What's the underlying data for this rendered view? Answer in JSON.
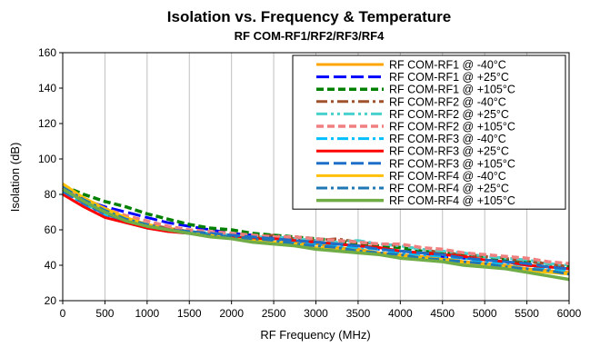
{
  "chart_data": {
    "type": "line",
    "title": "Isolation vs. Frequency & Temperature",
    "subtitle": "RF COM-RF1/RF2/RF3/RF4",
    "xlabel": "RF Frequency (MHz)",
    "ylabel": "Isolation (dB)",
    "xlim": [
      0,
      6000
    ],
    "ylim": [
      20,
      160
    ],
    "xticks": [
      0,
      500,
      1000,
      1500,
      2000,
      2500,
      3000,
      3500,
      4000,
      4500,
      5000,
      5500,
      6000
    ],
    "yticks": [
      20,
      40,
      60,
      80,
      100,
      120,
      140,
      160
    ],
    "grid": "vertical",
    "legend_position": "top-right",
    "x": [
      0,
      250,
      500,
      750,
      1000,
      1250,
      1500,
      1750,
      2000,
      2250,
      2500,
      2750,
      3000,
      3250,
      3500,
      3750,
      4000,
      4250,
      4500,
      4750,
      5000,
      5250,
      5500,
      5750,
      6000
    ],
    "series": [
      {
        "name": "RF COM-RF1 @ -40°C",
        "color": "#FFA500",
        "dash": "solid",
        "width": 3,
        "values": [
          84,
          76,
          70,
          66,
          63,
          61,
          59,
          58,
          57,
          56,
          55,
          53,
          52,
          50,
          49,
          47,
          46,
          45,
          44,
          42,
          41,
          40,
          38,
          37,
          36
        ]
      },
      {
        "name": "RF COM-RF1 @ +25°C",
        "color": "#0000FF",
        "dash": "longdash",
        "width": 3,
        "values": [
          82,
          77,
          73,
          70,
          67,
          64,
          62,
          60,
          58,
          57,
          56,
          55,
          53,
          52,
          51,
          49,
          48,
          47,
          45,
          44,
          43,
          42,
          40,
          39,
          38
        ]
      },
      {
        "name": "RF COM-RF1 @ +105°C",
        "color": "#008000",
        "dash": "dash",
        "width": 3.5,
        "values": [
          85,
          80,
          76,
          73,
          69,
          66,
          63,
          61,
          60,
          58,
          57,
          56,
          55,
          54,
          52,
          51,
          50,
          48,
          47,
          46,
          45,
          43,
          42,
          41,
          39
        ]
      },
      {
        "name": "RF COM-RF2 @ -40°C",
        "color": "#A0522D",
        "dash": "dashdot",
        "width": 3,
        "values": [
          83,
          76,
          70,
          66,
          63,
          61,
          59,
          58,
          57,
          56,
          57,
          55,
          54,
          55,
          53,
          52,
          51,
          49,
          47,
          46,
          45,
          44,
          42,
          41,
          39
        ]
      },
      {
        "name": "RF COM-RF2 @ +25°C",
        "color": "#48D1CC",
        "dash": "dashdotdot",
        "width": 3,
        "values": [
          82,
          75,
          69,
          65,
          62,
          60,
          59,
          58,
          57,
          56,
          56,
          55,
          54,
          53,
          54,
          52,
          51,
          49,
          48,
          47,
          45,
          44,
          43,
          41,
          40
        ]
      },
      {
        "name": "RF COM-RF2 @ +105°C",
        "color": "#F08080",
        "dash": "dash",
        "width": 3.5,
        "values": [
          84,
          78,
          72,
          68,
          65,
          62,
          60,
          59,
          58,
          57,
          56,
          56,
          55,
          54,
          53,
          52,
          52,
          50,
          49,
          47,
          46,
          45,
          44,
          42,
          41
        ]
      },
      {
        "name": "RF COM-RF3 @ -40°C",
        "color": "#00BFFF",
        "dash": "dashdot",
        "width": 3,
        "values": [
          81,
          74,
          68,
          64,
          61,
          59,
          58,
          57,
          56,
          55,
          54,
          53,
          52,
          51,
          50,
          49,
          47,
          46,
          45,
          44,
          42,
          41,
          40,
          38,
          37
        ]
      },
      {
        "name": "RF COM-RF3 @ +25°C",
        "color": "#FF0000",
        "dash": "solid",
        "width": 3,
        "values": [
          80,
          73,
          67,
          64,
          61,
          59,
          58,
          57,
          56,
          55,
          55,
          54,
          53,
          52,
          51,
          50,
          48,
          47,
          46,
          45,
          43,
          42,
          40,
          39,
          38
        ]
      },
      {
        "name": "RF COM-RF3 @ +105°C",
        "color": "#1E6EC8",
        "dash": "longdash",
        "width": 3,
        "values": [
          82,
          75,
          69,
          65,
          62,
          60,
          59,
          58,
          57,
          56,
          55,
          54,
          53,
          52,
          51,
          49,
          48,
          47,
          46,
          44,
          43,
          42,
          41,
          39,
          38
        ]
      },
      {
        "name": "RF COM-RF4 @ -40°C",
        "color": "#FFC000",
        "dash": "solid",
        "width": 3,
        "values": [
          86,
          78,
          72,
          67,
          63,
          60,
          58,
          57,
          55,
          54,
          53,
          52,
          50,
          49,
          48,
          46,
          45,
          44,
          43,
          41,
          40,
          39,
          37,
          36,
          35
        ]
      },
      {
        "name": "RF COM-RF4 @ +25°C",
        "color": "#1F77B4",
        "dash": "dashdot",
        "width": 3,
        "values": [
          84,
          77,
          71,
          66,
          63,
          60,
          59,
          57,
          56,
          55,
          54,
          52,
          51,
          50,
          48,
          47,
          46,
          44,
          43,
          42,
          41,
          39,
          38,
          37,
          35
        ]
      },
      {
        "name": "RF COM-RF4 @ +105°C",
        "color": "#70AD47",
        "dash": "solid",
        "width": 3.5,
        "values": [
          83,
          76,
          70,
          65,
          62,
          60,
          58,
          56,
          55,
          53,
          52,
          51,
          49,
          48,
          47,
          46,
          44,
          43,
          42,
          40,
          39,
          38,
          36,
          34,
          32
        ]
      }
    ]
  }
}
